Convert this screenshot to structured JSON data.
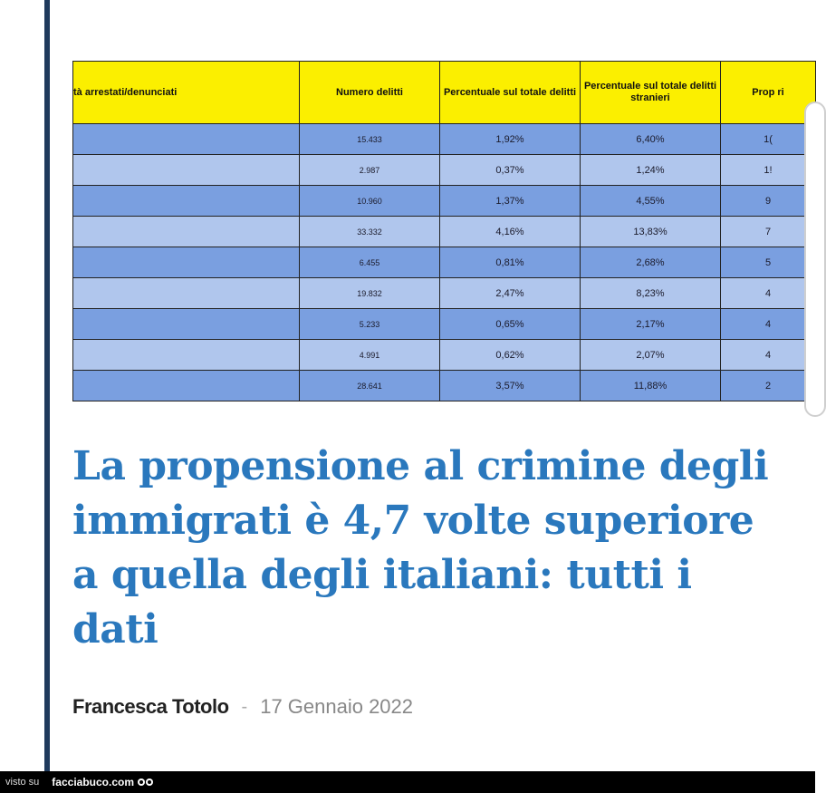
{
  "table": {
    "headers": [
      "tà arrestati/denunciati",
      "Numero delitti",
      "Percentuale sul totale delitti",
      "Percentuale sul totale delitti stranieri",
      "Prop ri"
    ],
    "rows": [
      {
        "n": "15.433",
        "p1": "1,92%",
        "p2": "6,40%",
        "p3": "1("
      },
      {
        "n": "2.987",
        "p1": "0,37%",
        "p2": "1,24%",
        "p3": "1!"
      },
      {
        "n": "10.960",
        "p1": "1,37%",
        "p2": "4,55%",
        "p3": "9"
      },
      {
        "n": "33.332",
        "p1": "4,16%",
        "p2": "13,83%",
        "p3": "7"
      },
      {
        "n": "6.455",
        "p1": "0,81%",
        "p2": "2,68%",
        "p3": "5"
      },
      {
        "n": "19.832",
        "p1": "2,47%",
        "p2": "8,23%",
        "p3": "4"
      },
      {
        "n": "5.233",
        "p1": "0,65%",
        "p2": "2,17%",
        "p3": "4"
      },
      {
        "n": "4.991",
        "p1": "0,62%",
        "p2": "2,07%",
        "p3": "4"
      },
      {
        "n": "28.641",
        "p1": "3,57%",
        "p2": "11,88%",
        "p3": "2"
      }
    ]
  },
  "article": {
    "headline": "La propensione al crimine degli immigrati è 4,7 volte superiore a quella degli italiani: tutti i dati",
    "author": "Francesca Totolo",
    "separator": "-",
    "date": "17 Gennaio 2022"
  },
  "footer": {
    "visto_label": "visto su",
    "brand": "facciabuco.com"
  },
  "colors": {
    "headline": "#2a78bd",
    "header_yellow": "#fbef00",
    "row_dark": "#7a9fe0",
    "row_light": "#b0c6ed",
    "left_rule": "#1f3a5c"
  }
}
